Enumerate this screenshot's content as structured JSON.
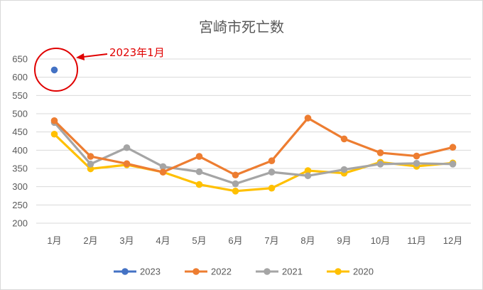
{
  "chart_data": {
    "type": "line",
    "title": "宮崎市死亡数",
    "categories": [
      "1月",
      "2月",
      "3月",
      "4月",
      "5月",
      "6月",
      "7月",
      "8月",
      "9月",
      "10月",
      "11月",
      "12月"
    ],
    "ylim": [
      200,
      650
    ],
    "yticks": [
      200,
      250,
      300,
      350,
      400,
      450,
      500,
      550,
      600,
      650
    ],
    "grid": true,
    "legend_position": "bottom",
    "series": [
      {
        "name": "2023",
        "color": "#4472c4",
        "values": [
          620,
          null,
          null,
          null,
          null,
          null,
          null,
          null,
          null,
          null,
          null,
          null
        ]
      },
      {
        "name": "2022",
        "color": "#ed7d31",
        "values": [
          481,
          383,
          363,
          340,
          383,
          332,
          371,
          488,
          431,
          393,
          384,
          408
        ]
      },
      {
        "name": "2021",
        "color": "#a5a5a5",
        "values": [
          476,
          362,
          407,
          355,
          341,
          308,
          340,
          330,
          347,
          362,
          364,
          362
        ]
      },
      {
        "name": "2020",
        "color": "#ffc000",
        "values": [
          444,
          349,
          360,
          340,
          306,
          288,
          296,
          344,
          337,
          367,
          356,
          365
        ]
      }
    ],
    "annotation": {
      "text": "2023年1月",
      "color": "#e00000"
    }
  }
}
